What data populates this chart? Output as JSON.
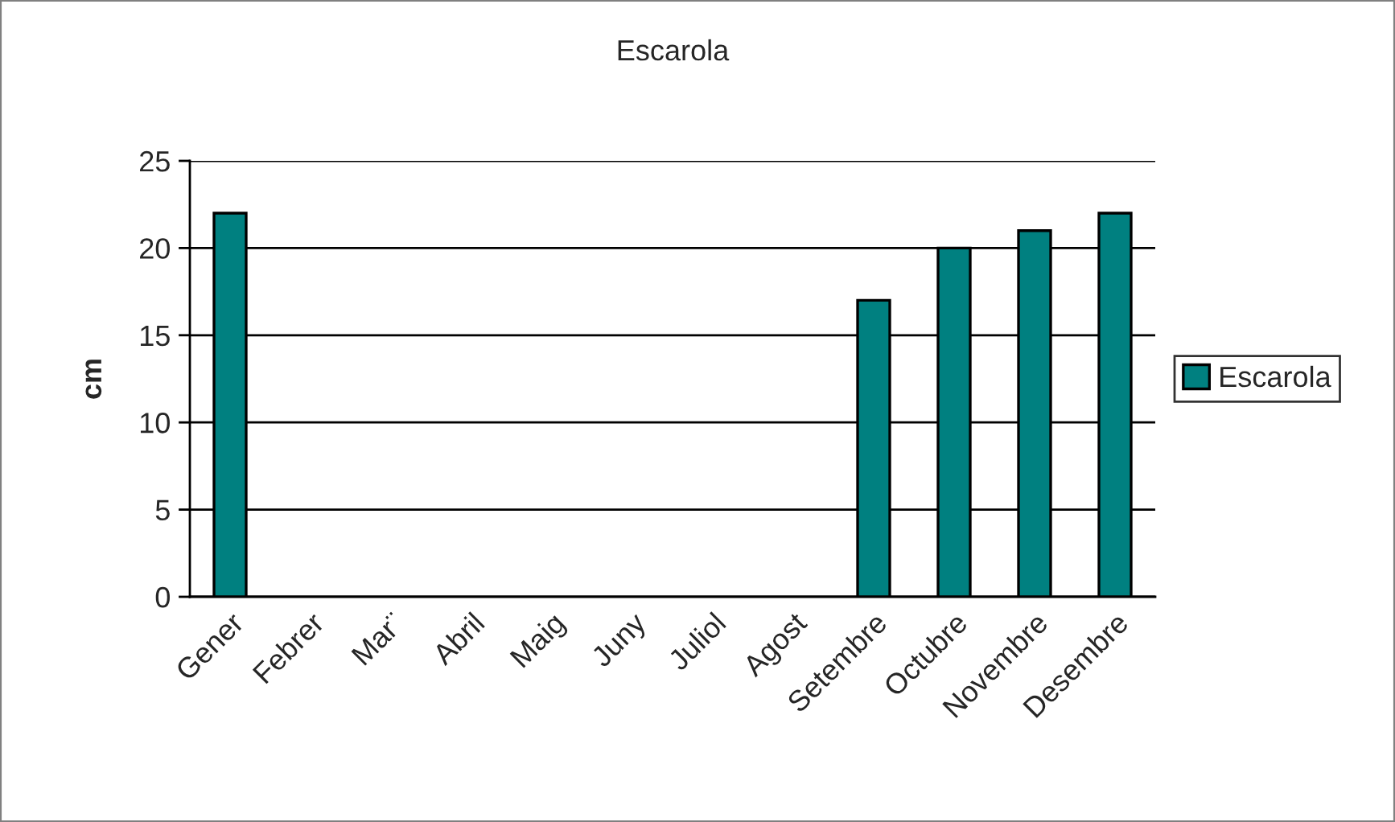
{
  "chart_data": {
    "type": "bar",
    "title": "Escarola",
    "ylabel": "cm",
    "categories": [
      "Gener",
      "Febrer",
      "Mar¨",
      "Abril",
      "Maig",
      "Juny",
      "Juliol",
      "Agost",
      "Setembre",
      "Octubre",
      "Novembre",
      "Desembre"
    ],
    "series": [
      {
        "name": "Escarola",
        "color": "#008080",
        "values": [
          22,
          null,
          null,
          null,
          null,
          null,
          null,
          null,
          17,
          20,
          21,
          22
        ]
      }
    ],
    "ylim": [
      0,
      25
    ],
    "yticks": [
      0,
      5,
      10,
      15,
      20,
      25
    ],
    "grid": "y",
    "legend": "right"
  }
}
